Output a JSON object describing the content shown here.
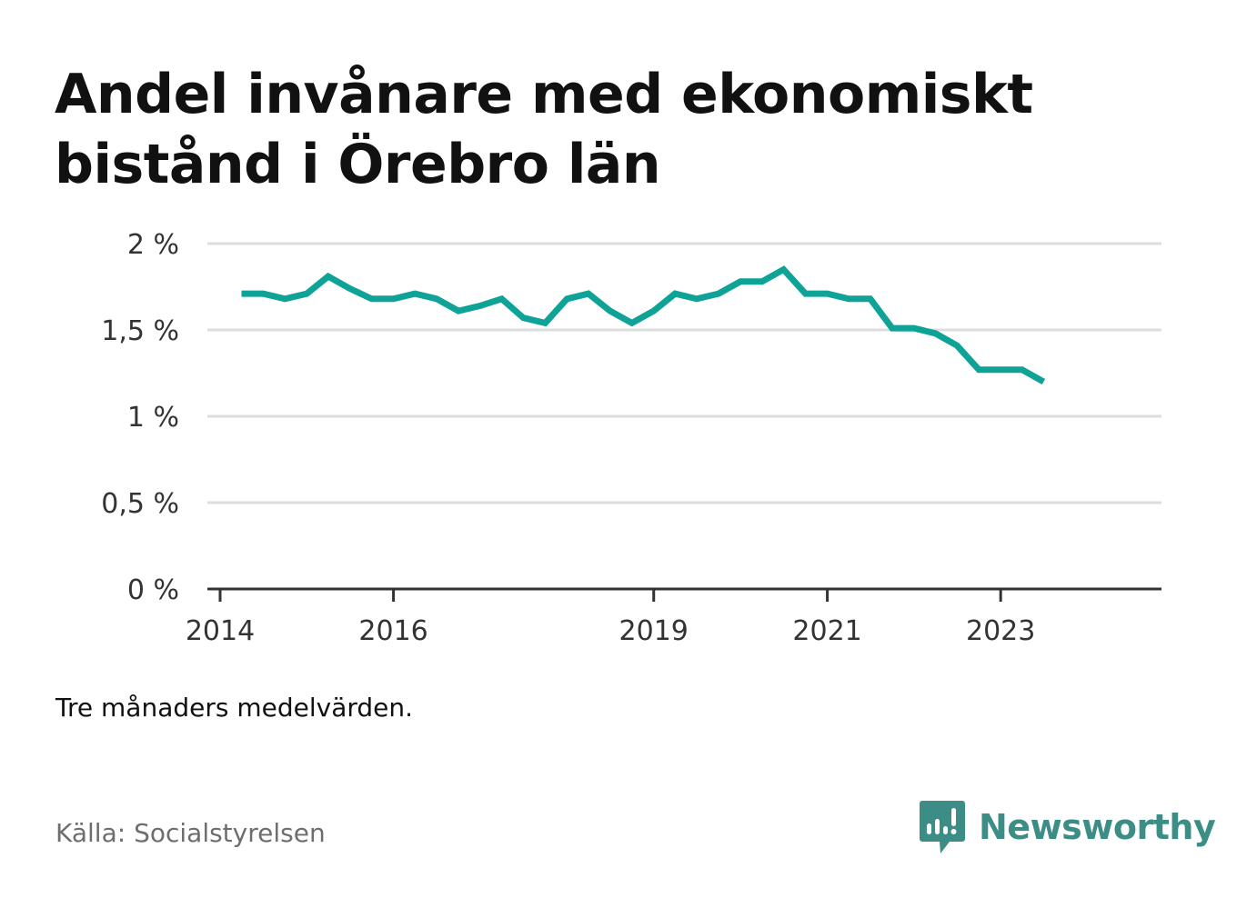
{
  "title": "Andel invånare med ekonomiskt bistånd i Örebro län",
  "note": "Tre månaders medelvärden.",
  "source": "Källa: Socialstyrelsen",
  "brand": {
    "name": "Newsworthy",
    "icon": "newsworthy-logo-icon",
    "color": "#3c8d85"
  },
  "chart_data": {
    "type": "line",
    "title": "Andel invånare med ekonomiskt bistånd i Örebro län",
    "xlabel": "",
    "ylabel": "",
    "y_unit": "%",
    "ylim": [
      0,
      2
    ],
    "y_ticks": [
      {
        "value": 0,
        "label": "0 %"
      },
      {
        "value": 0.5,
        "label": "0,5 %"
      },
      {
        "value": 1,
        "label": "1 %"
      },
      {
        "value": 1.5,
        "label": "1,5 %"
      },
      {
        "value": 2,
        "label": "2 %"
      }
    ],
    "xlim": [
      "2014-01-01",
      "2024-10-01"
    ],
    "x_ticks": [
      {
        "value": "2014-01-01",
        "label": "2014"
      },
      {
        "value": "2016-01-01",
        "label": "2016"
      },
      {
        "value": "2019-01-01",
        "label": "2019"
      },
      {
        "value": "2021-01-01",
        "label": "2021"
      },
      {
        "value": "2023-01-01",
        "label": "2023"
      }
    ],
    "grid": true,
    "line_color": "#0fa397",
    "series": [
      {
        "points": [
          {
            "x": "2014-04-01",
            "y": 1.71
          },
          {
            "x": "2014-07-01",
            "y": 1.71
          },
          {
            "x": "2014-10-01",
            "y": 1.68
          },
          {
            "x": "2015-01-01",
            "y": 1.71
          },
          {
            "x": "2015-04-01",
            "y": 1.81
          },
          {
            "x": "2015-07-01",
            "y": 1.74
          },
          {
            "x": "2015-10-01",
            "y": 1.68
          },
          {
            "x": "2016-01-01",
            "y": 1.68
          },
          {
            "x": "2016-04-01",
            "y": 1.71
          },
          {
            "x": "2016-07-01",
            "y": 1.68
          },
          {
            "x": "2016-10-01",
            "y": 1.61
          },
          {
            "x": "2017-01-01",
            "y": 1.64
          },
          {
            "x": "2017-04-01",
            "y": 1.68
          },
          {
            "x": "2017-07-01",
            "y": 1.57
          },
          {
            "x": "2017-10-01",
            "y": 1.54
          },
          {
            "x": "2018-01-01",
            "y": 1.68
          },
          {
            "x": "2018-04-01",
            "y": 1.71
          },
          {
            "x": "2018-07-01",
            "y": 1.61
          },
          {
            "x": "2018-10-01",
            "y": 1.54
          },
          {
            "x": "2019-01-01",
            "y": 1.61
          },
          {
            "x": "2019-04-01",
            "y": 1.71
          },
          {
            "x": "2019-07-01",
            "y": 1.68
          },
          {
            "x": "2019-10-01",
            "y": 1.71
          },
          {
            "x": "2020-01-01",
            "y": 1.78
          },
          {
            "x": "2020-04-01",
            "y": 1.78
          },
          {
            "x": "2020-07-01",
            "y": 1.85
          },
          {
            "x": "2020-10-01",
            "y": 1.71
          },
          {
            "x": "2021-01-01",
            "y": 1.71
          },
          {
            "x": "2021-04-01",
            "y": 1.68
          },
          {
            "x": "2021-07-01",
            "y": 1.68
          },
          {
            "x": "2021-10-01",
            "y": 1.51
          },
          {
            "x": "2022-01-01",
            "y": 1.51
          },
          {
            "x": "2022-04-01",
            "y": 1.48
          },
          {
            "x": "2022-07-01",
            "y": 1.41
          },
          {
            "x": "2022-10-01",
            "y": 1.27
          },
          {
            "x": "2023-01-01",
            "y": 1.27
          },
          {
            "x": "2023-04-01",
            "y": 1.27
          },
          {
            "x": "2023-07-01",
            "y": 1.2
          }
        ]
      }
    ]
  }
}
